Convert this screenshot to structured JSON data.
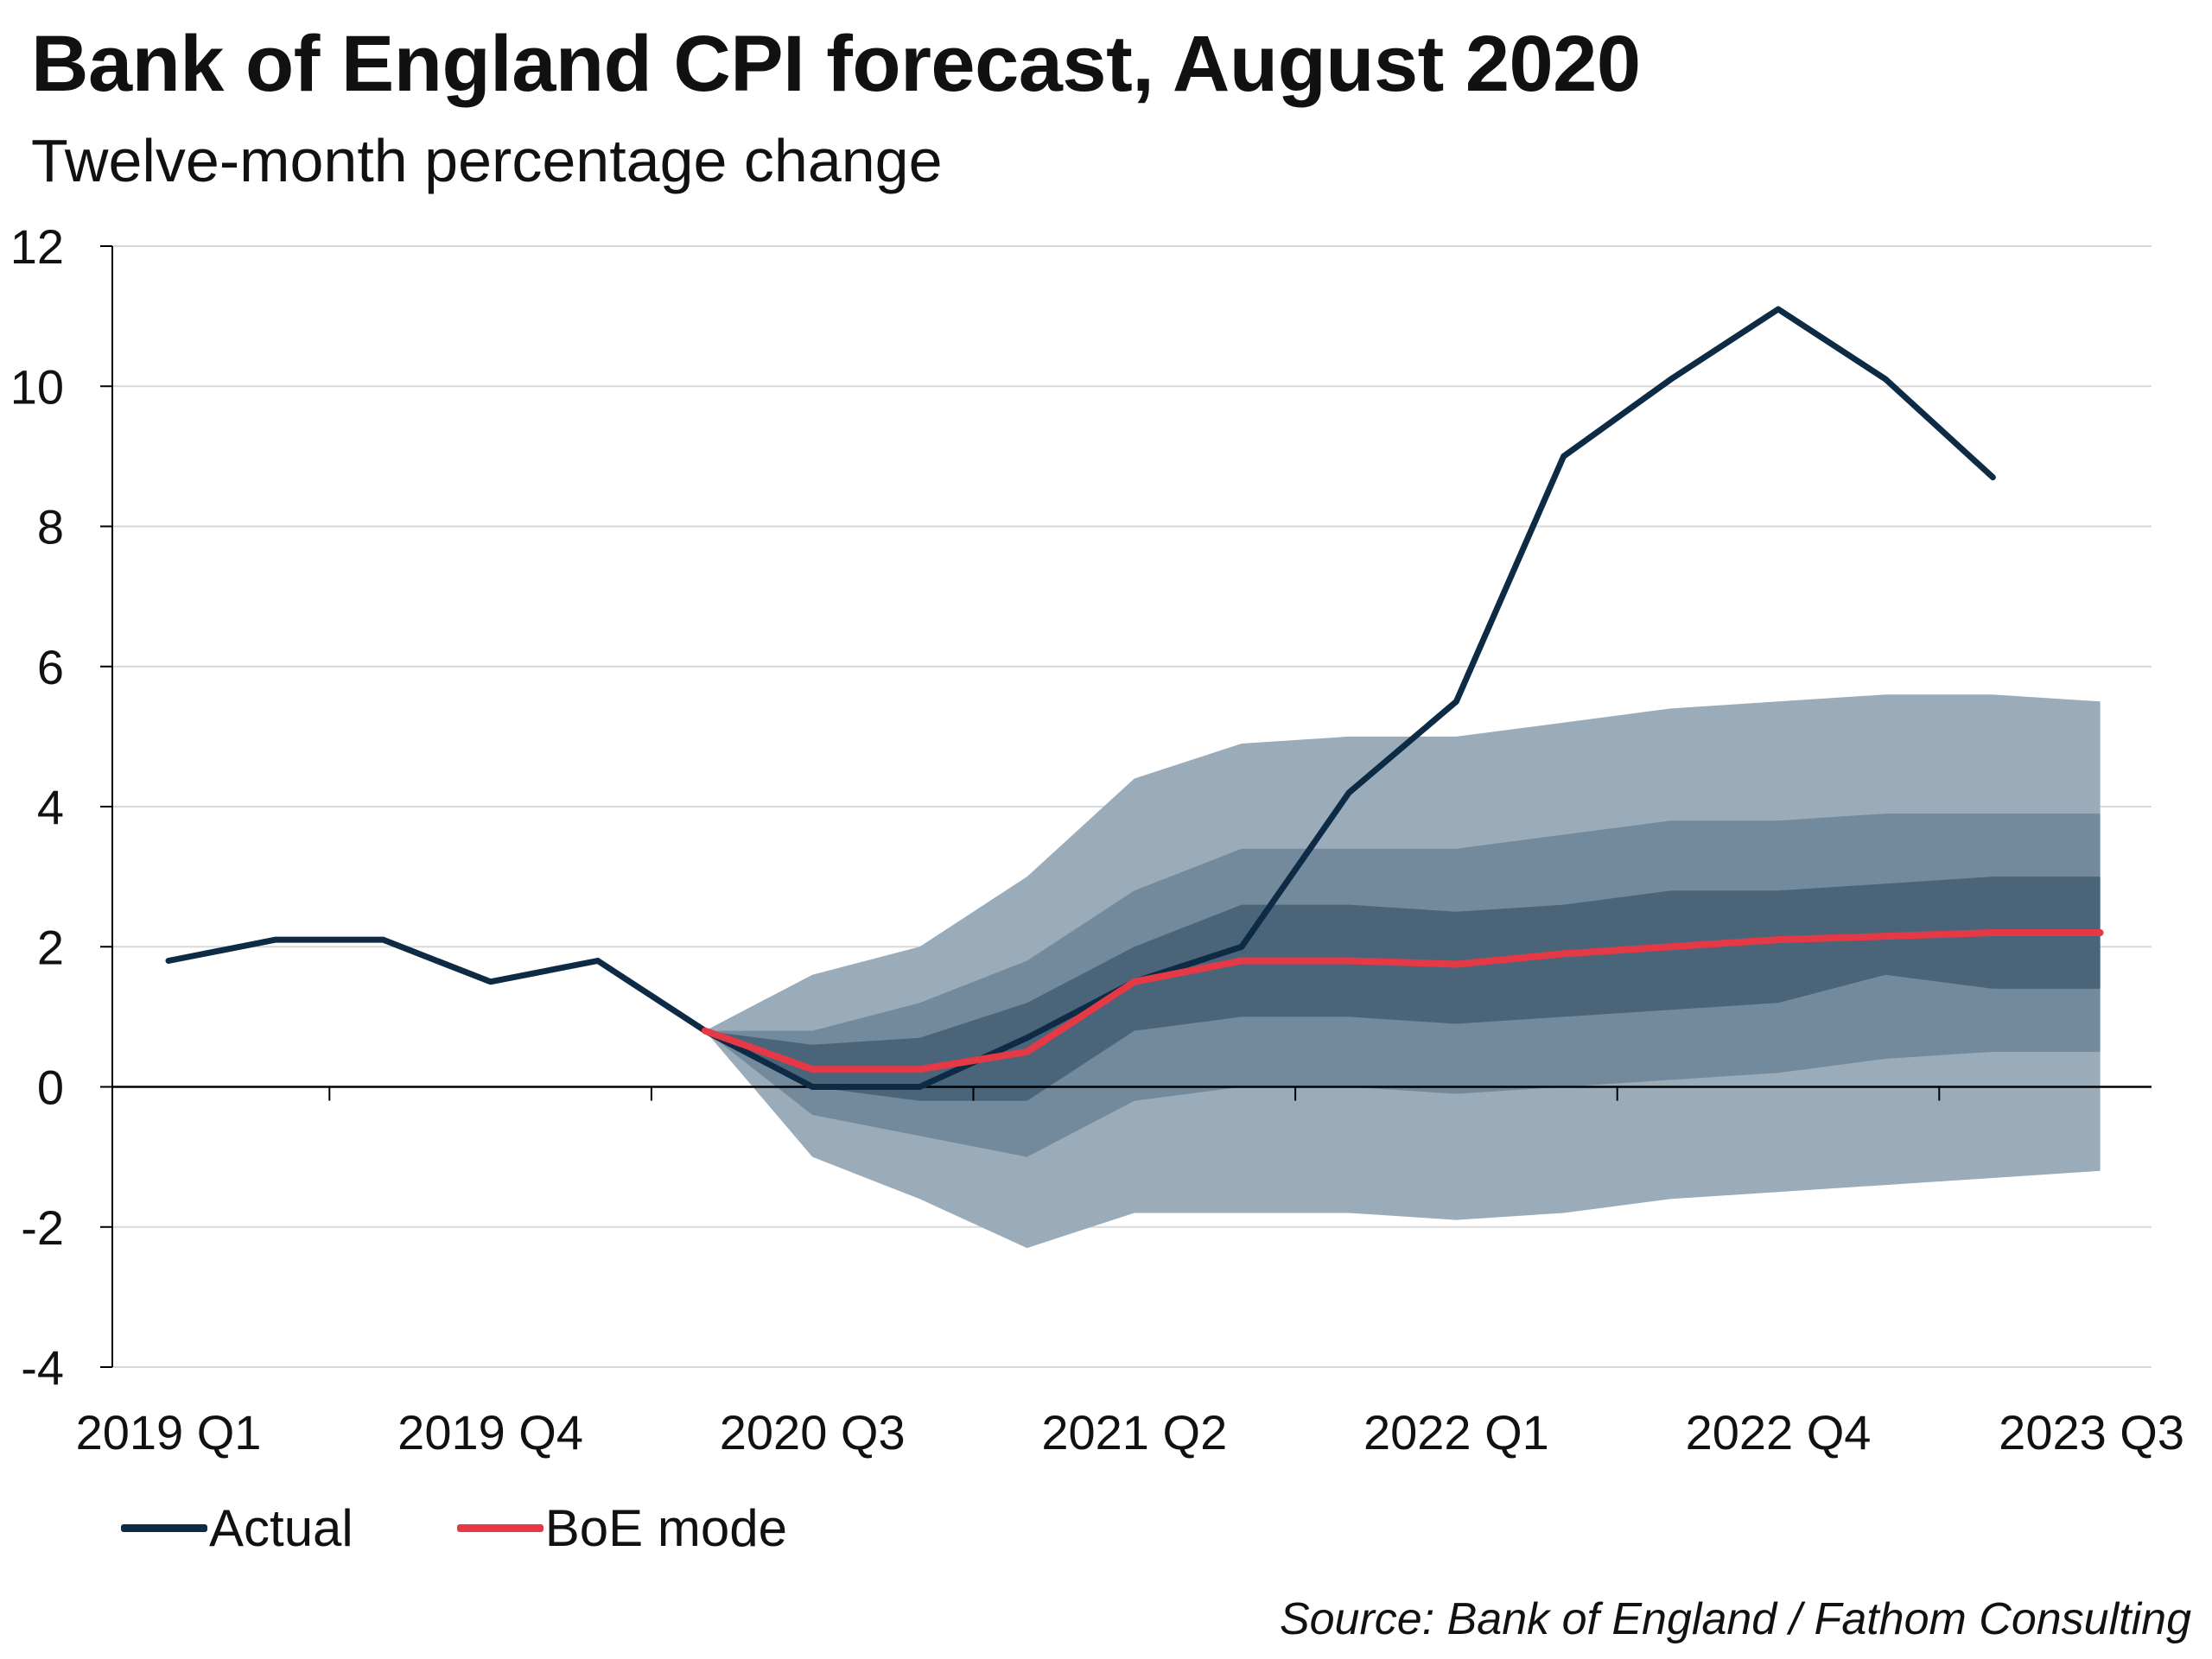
{
  "title": "Bank of England CPI forecast, August 2020",
  "subtitle": "Twelve-month percentage change",
  "source": "Source: Bank of England / Fathom Consulting",
  "colors": {
    "actual": "#0d2b45",
    "mode": "#e63946",
    "band_outer": "#9aabb9",
    "band_middle": "#738a9c",
    "band_inner": "#4a6479",
    "grid": "#d9d9d9",
    "axis": "#000000"
  },
  "chart_data": {
    "type": "line",
    "ylim": [
      -4,
      12
    ],
    "yticks": [
      12,
      10,
      8,
      6,
      4,
      2,
      0,
      -2,
      -4
    ],
    "x_tick_labels": [
      "2019 Q1",
      "2019 Q4",
      "2020 Q3",
      "2021 Q2",
      "2022 Q1",
      "2022 Q4",
      "2023 Q3"
    ],
    "x_quarters": [
      "2019 Q1",
      "2019 Q2",
      "2019 Q3",
      "2019 Q4",
      "2020 Q1",
      "2020 Q2",
      "2020 Q3",
      "2020 Q4",
      "2021 Q1",
      "2021 Q2",
      "2021 Q3",
      "2021 Q4",
      "2022 Q1",
      "2022 Q2",
      "2022 Q3",
      "2022 Q4",
      "2023 Q1",
      "2023 Q2",
      "2023 Q3"
    ],
    "grid": true,
    "legend_position": "bottom-left",
    "series": [
      {
        "name": "Actual",
        "x": [
          "2019 Q1",
          "2019 Q2",
          "2019 Q3",
          "2019 Q4",
          "2020 Q1",
          "2020 Q2",
          "2020 Q3",
          "2020 Q4",
          "2021 Q1",
          "2021 Q2",
          "2021 Q3",
          "2021 Q4",
          "2022 Q1",
          "2022 Q2",
          "2022 Q3",
          "2022 Q4",
          "2023 Q1",
          "2023 Q2"
        ],
        "values": [
          1.8,
          2.1,
          2.1,
          1.5,
          1.8,
          0.8,
          0.0,
          0.0,
          0.7,
          1.5,
          2.0,
          4.2,
          5.5,
          9.0,
          10.1,
          11.1,
          10.1,
          8.7
        ]
      },
      {
        "name": "BoE mode",
        "x": [
          "2020 Q2",
          "2020 Q3",
          "2020 Q4",
          "2021 Q1",
          "2021 Q2",
          "2021 Q3",
          "2021 Q4",
          "2022 Q1",
          "2022 Q2",
          "2022 Q3",
          "2022 Q4",
          "2023 Q1",
          "2023 Q2",
          "2023 Q3"
        ],
        "values": [
          0.8,
          0.25,
          0.25,
          0.5,
          1.5,
          1.8,
          1.8,
          1.75,
          1.9,
          2.0,
          2.1,
          2.15,
          2.2,
          2.2
        ]
      }
    ],
    "fan_bands": {
      "x": [
        "2020 Q2",
        "2020 Q3",
        "2020 Q4",
        "2021 Q1",
        "2021 Q2",
        "2021 Q3",
        "2021 Q4",
        "2022 Q1",
        "2022 Q2",
        "2022 Q3",
        "2022 Q4",
        "2023 Q1",
        "2023 Q2",
        "2023 Q3"
      ],
      "outer": {
        "upper": [
          0.8,
          1.6,
          2.0,
          3.0,
          4.4,
          4.9,
          5.0,
          5.0,
          5.2,
          5.4,
          5.5,
          5.6,
          5.6,
          5.5
        ],
        "lower": [
          0.8,
          -1.0,
          -1.6,
          -2.3,
          -1.8,
          -1.8,
          -1.8,
          -1.9,
          -1.8,
          -1.6,
          -1.5,
          -1.4,
          -1.3,
          -1.2
        ]
      },
      "middle": {
        "upper": [
          0.8,
          0.8,
          1.2,
          1.8,
          2.8,
          3.4,
          3.4,
          3.4,
          3.6,
          3.8,
          3.8,
          3.9,
          3.9,
          3.9
        ],
        "lower": [
          0.8,
          -0.4,
          -0.7,
          -1.0,
          -0.2,
          0.0,
          0.0,
          -0.1,
          0.0,
          0.1,
          0.2,
          0.4,
          0.5,
          0.5
        ]
      },
      "inner": {
        "upper": [
          0.8,
          0.6,
          0.7,
          1.2,
          2.0,
          2.6,
          2.6,
          2.5,
          2.6,
          2.8,
          2.8,
          2.9,
          3.0,
          3.0
        ],
        "lower": [
          0.8,
          0.0,
          -0.2,
          -0.2,
          0.8,
          1.0,
          1.0,
          0.9,
          1.0,
          1.1,
          1.2,
          1.6,
          1.4,
          1.4
        ]
      }
    }
  }
}
